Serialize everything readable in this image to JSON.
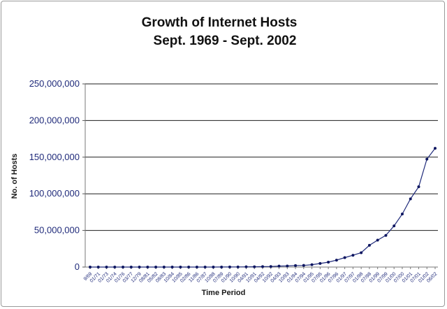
{
  "chart_data": {
    "type": "line",
    "title": "Growth of Internet Hosts",
    "subtitle": "Sept. 1969 - Sept. 2002",
    "xlabel": "Time Period",
    "ylabel": "No. of Hosts",
    "ylim": [
      0,
      250000000
    ],
    "y_ticks": [
      "0",
      "50,000,000",
      "100,000,000",
      "150,000,000",
      "200,000,000",
      "250,000,000"
    ],
    "y_tick_values": [
      0,
      50000000,
      100000000,
      150000000,
      200000000,
      250000000
    ],
    "x_tick_labels": [
      {
        "index": 0,
        "label": "9/69"
      },
      {
        "index": 1,
        "label": "01/71"
      },
      {
        "index": 2,
        "label": "01/73"
      },
      {
        "index": 3,
        "label": "01/74"
      },
      {
        "index": 4,
        "label": "01/76"
      },
      {
        "index": 5,
        "label": "03/77"
      },
      {
        "index": 6,
        "label": "12/79"
      },
      {
        "index": 7,
        "label": "08/81"
      },
      {
        "index": 8,
        "label": "05/82"
      },
      {
        "index": 9,
        "label": "08/83"
      },
      {
        "index": 10,
        "label": "10/84"
      },
      {
        "index": 11,
        "label": "10/85"
      },
      {
        "index": 12,
        "label": "02/86"
      },
      {
        "index": 13,
        "label": "11/86"
      },
      {
        "index": 14,
        "label": "07/87"
      },
      {
        "index": 15,
        "label": "10/88"
      },
      {
        "index": 16,
        "label": "07/89"
      },
      {
        "index": 17,
        "label": "01/90"
      },
      {
        "index": 18,
        "label": "10/90"
      },
      {
        "index": 19,
        "label": "04/91"
      },
      {
        "index": 20,
        "label": "10/91"
      },
      {
        "index": 21,
        "label": "04/92"
      },
      {
        "index": 22,
        "label": "10/92"
      },
      {
        "index": 23,
        "label": "04/93"
      },
      {
        "index": 24,
        "label": "10/93"
      },
      {
        "index": 25,
        "label": "01/94"
      },
      {
        "index": 26,
        "label": "07/94"
      },
      {
        "index": 27,
        "label": "01/95"
      },
      {
        "index": 28,
        "label": "07/95"
      },
      {
        "index": 29,
        "label": "01/96"
      },
      {
        "index": 30,
        "label": "07/96"
      },
      {
        "index": 31,
        "label": "01/97"
      },
      {
        "index": 32,
        "label": "07/97"
      },
      {
        "index": 33,
        "label": "01/98"
      },
      {
        "index": 34,
        "label": "07/98"
      },
      {
        "index": 35,
        "label": "01/99"
      },
      {
        "index": 36,
        "label": "07/99"
      },
      {
        "index": 37,
        "label": "01/00"
      },
      {
        "index": 38,
        "label": "07/00"
      },
      {
        "index": 39,
        "label": "01/01"
      },
      {
        "index": 40,
        "label": "07/01"
      },
      {
        "index": 41,
        "label": "01/02"
      },
      {
        "index": 42,
        "label": "06/02"
      }
    ],
    "series": [
      {
        "values": [
          4,
          23,
          35,
          62,
          62,
          111,
          188,
          213,
          235,
          562,
          1024,
          1961,
          2308,
          5089,
          10000,
          28174,
          56000,
          130000,
          159000,
          313000,
          376000,
          617000,
          727000,
          1313000,
          1486000,
          2056000,
          2217000,
          3212000,
          4852000,
          6642000,
          9472000,
          12881000,
          16146000,
          19540000,
          29670000,
          36739000,
          43230000,
          56218000,
          72398000,
          93047000,
          109574000,
          147344000,
          162128000
        ]
      }
    ],
    "grid": true,
    "legend": "none",
    "colors": {
      "line": "#1f2a7a",
      "marker": "#0d1660",
      "grid": "#1e1e1e",
      "plot_bg": "#ffffff"
    }
  }
}
